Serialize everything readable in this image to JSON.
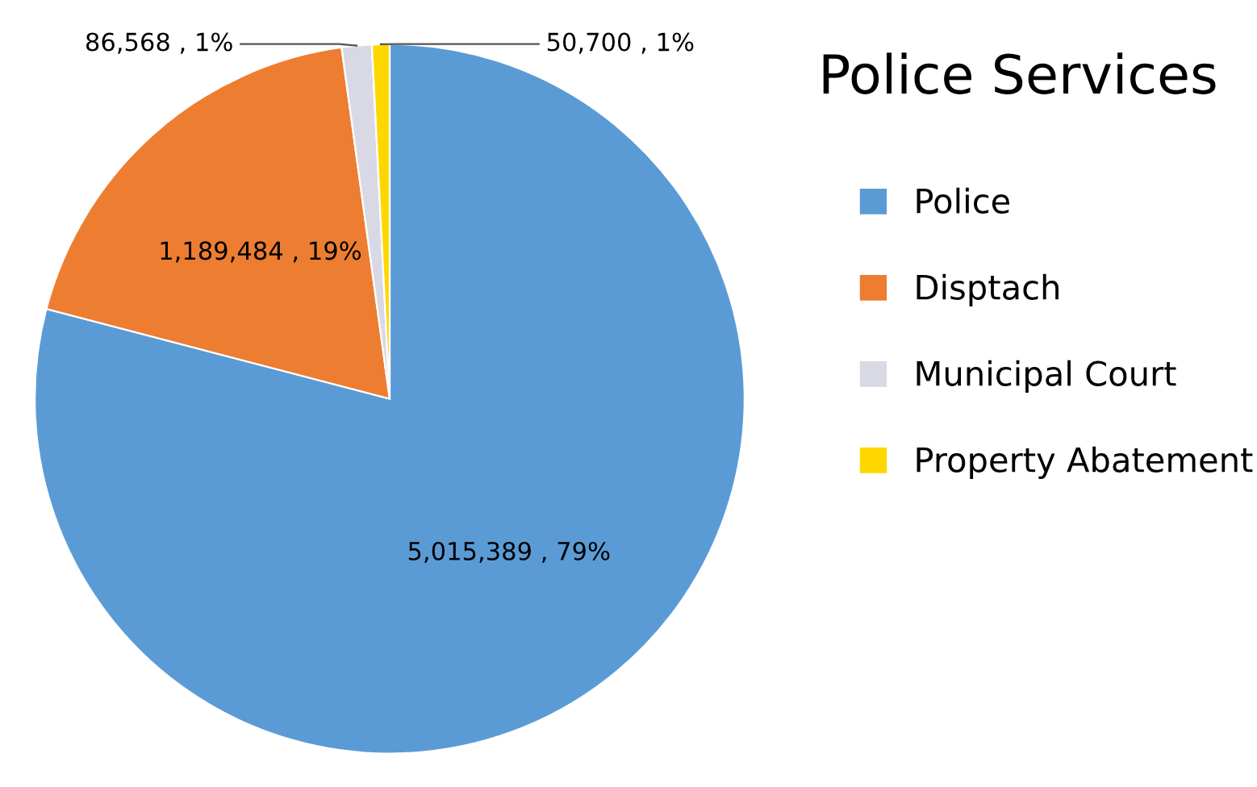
{
  "chart_data": {
    "type": "pie",
    "title": "Police Services",
    "categories": [
      "Police",
      "Disptach",
      "Municipal Court",
      "Property Abatement"
    ],
    "values": [
      5015389,
      1189484,
      86568,
      50700
    ],
    "colors": [
      "#5b9bd5",
      "#ed7d31",
      "#d9d9e6",
      "#ffd700"
    ],
    "value_labels": [
      "5,015,389 , 79%",
      "1,189,484 , 19%",
      "86,568 , 1%",
      "50,700 , 1%"
    ],
    "legend": "right"
  }
}
